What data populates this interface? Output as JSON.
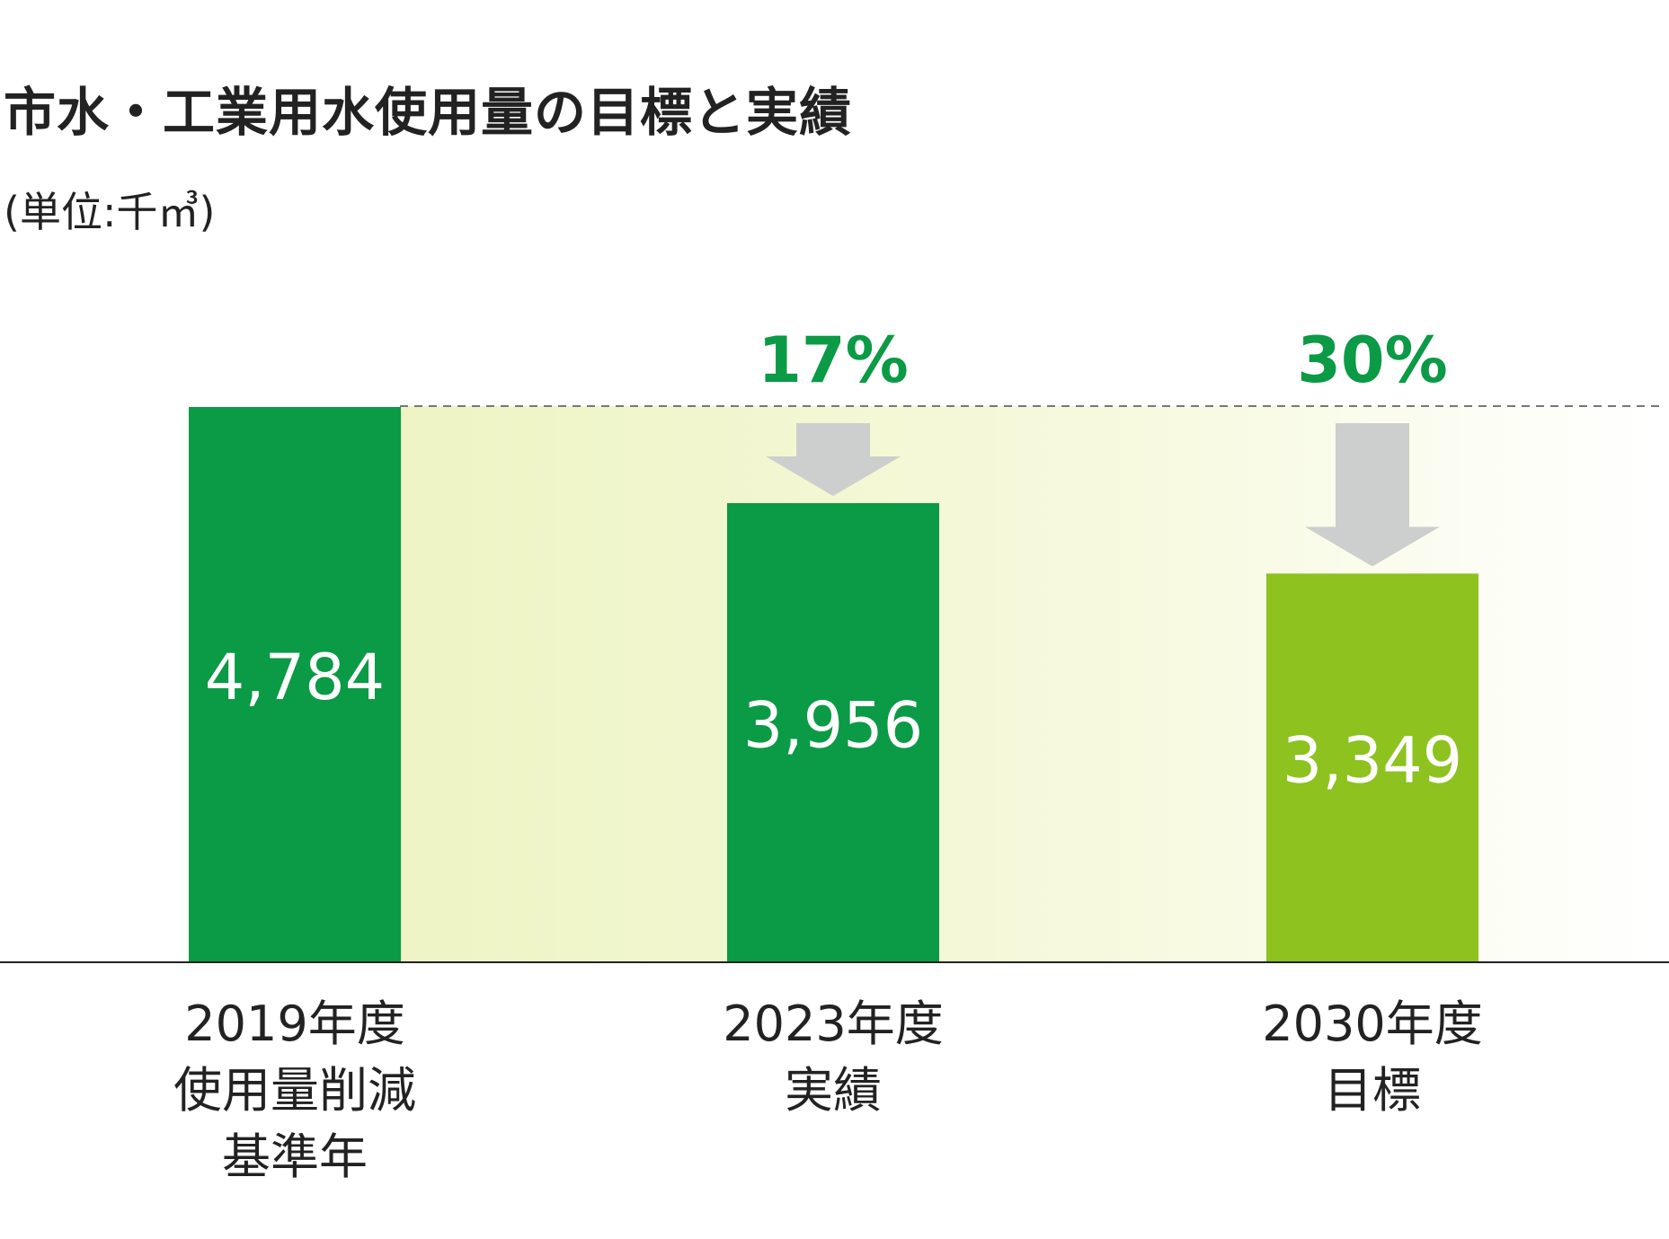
{
  "title": "市水・工業用水使用量の目標と実績",
  "unit": "(単位:千㎥)",
  "chart_data": {
    "type": "bar",
    "title": "市水・工業用水使用量の目標と実績",
    "ylabel": "(単位:千㎥)",
    "xlabel": "",
    "ylim": [
      0,
      4784
    ],
    "grid": false,
    "categories": [
      [
        "2019年度",
        "使用量削減",
        "基準年"
      ],
      [
        "2023年度",
        "実績"
      ],
      [
        "2030年度",
        "目標"
      ]
    ],
    "values": [
      4784,
      3956,
      3349
    ],
    "value_labels": [
      "4,784",
      "3,956",
      "3,349"
    ],
    "reductions": [
      null,
      "17%",
      "30%"
    ],
    "colors": {
      "bar_actual": "#0b9a45",
      "bar_target": "#8dc21f",
      "arrow": "#cccfcd",
      "reduction_text": "#0b9a45",
      "band": "#eef4c4"
    }
  }
}
